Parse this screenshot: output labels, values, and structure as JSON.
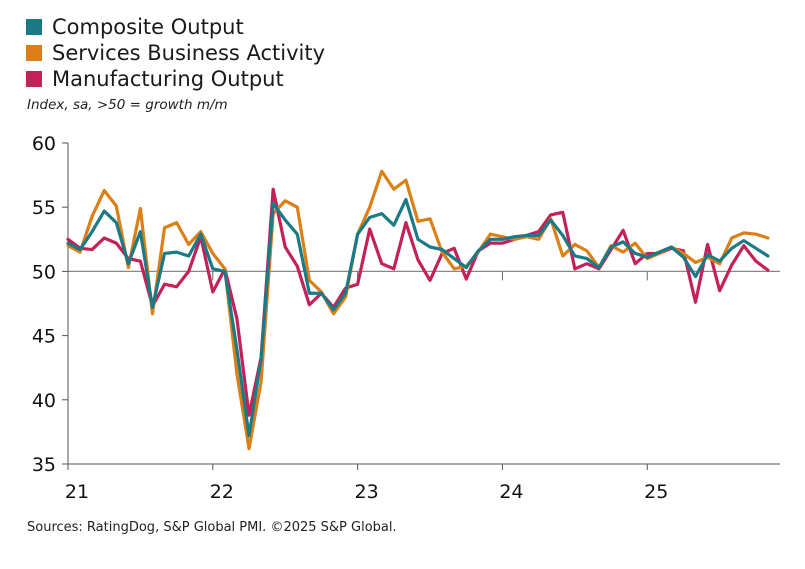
{
  "chart_data": {
    "type": "line",
    "title": "",
    "subtitle": "Index, sa, >50 = growth m/m",
    "source": "Sources: RatingDog, S&P Global PMI. ©2025 S&P Global.",
    "xlabel": "",
    "ylabel": "",
    "ylim": [
      35,
      60
    ],
    "yticks": [
      35,
      40,
      45,
      50,
      55,
      60
    ],
    "xlim": [
      0,
      59
    ],
    "xticks": [
      {
        "pos": 0,
        "label": "21"
      },
      {
        "pos": 12,
        "label": "22"
      },
      {
        "pos": 24,
        "label": "23"
      },
      {
        "pos": 36,
        "label": "24"
      },
      {
        "pos": 48,
        "label": "25"
      }
    ],
    "reference_line": 50,
    "grid": false,
    "legend_position": "top-left",
    "series": [
      {
        "name": "Composite Output",
        "color": "#1a7a85",
        "values": [
          52.2,
          51.7,
          53.1,
          54.7,
          53.8,
          50.6,
          53.1,
          47.2,
          51.4,
          51.5,
          51.2,
          52.9,
          50.2,
          50.0,
          43.9,
          37.2,
          43.2,
          55.3,
          54.0,
          52.9,
          48.3,
          48.3,
          47.0,
          48.3,
          52.9,
          54.2,
          54.5,
          53.6,
          55.6,
          52.5,
          51.9,
          51.7,
          51.0,
          50.3,
          51.6,
          52.5,
          52.5,
          52.7,
          52.8,
          52.8,
          54.0,
          52.8,
          51.2,
          51.0,
          50.3,
          51.9,
          52.3,
          51.4,
          51.1,
          51.5,
          51.9,
          51.1,
          49.6,
          51.3,
          50.8,
          51.8,
          52.4,
          51.8,
          51.2
        ]
      },
      {
        "name": "Services Business Activity",
        "color": "#dc7f16",
        "values": [
          52.0,
          51.5,
          54.3,
          56.3,
          55.1,
          50.3,
          54.9,
          46.7,
          53.4,
          53.8,
          52.1,
          53.1,
          51.4,
          50.2,
          42.0,
          36.2,
          41.4,
          54.5,
          55.5,
          55.0,
          49.3,
          48.4,
          46.7,
          48.0,
          52.9,
          55.0,
          57.8,
          56.4,
          57.1,
          53.9,
          54.1,
          51.5,
          50.2,
          50.4,
          51.5,
          52.9,
          52.7,
          52.5,
          52.7,
          52.5,
          54.1,
          51.2,
          52.1,
          51.6,
          50.3,
          52.0,
          51.5,
          52.2,
          51.0,
          51.4,
          51.9,
          51.4,
          50.7,
          51.1,
          50.6,
          52.6,
          53.0,
          52.9,
          52.6
        ]
      },
      {
        "name": "Manufacturing Output",
        "color": "#c4205a",
        "values": [
          52.5,
          51.8,
          51.7,
          52.6,
          52.2,
          51.0,
          50.8,
          47.3,
          49.0,
          48.8,
          50.0,
          52.7,
          48.4,
          50.2,
          46.3,
          38.8,
          43.3,
          56.4,
          51.9,
          50.4,
          47.4,
          48.3,
          47.2,
          48.7,
          49.0,
          53.3,
          50.6,
          50.2,
          53.8,
          50.9,
          49.3,
          51.4,
          51.8,
          49.4,
          51.6,
          52.2,
          52.2,
          52.5,
          52.8,
          53.1,
          54.4,
          54.6,
          50.2,
          50.6,
          50.2,
          51.7,
          53.2,
          50.6,
          51.4,
          51.4,
          51.8,
          51.6,
          47.6,
          52.1,
          48.5,
          50.5,
          52.0,
          50.8,
          50.1
        ]
      }
    ]
  }
}
